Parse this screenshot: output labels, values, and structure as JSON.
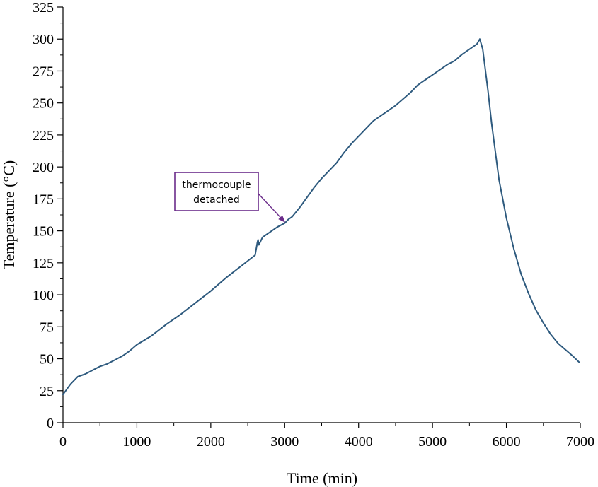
{
  "chart_data": {
    "type": "line",
    "xlabel": "Time (min)",
    "ylabel": "Temperature (°C)",
    "xlim": [
      0,
      7000
    ],
    "ylim": [
      0,
      325
    ],
    "x_ticks": [
      0,
      1000,
      2000,
      3000,
      4000,
      5000,
      6000,
      7000
    ],
    "y_ticks": [
      0,
      25,
      50,
      75,
      100,
      125,
      150,
      175,
      200,
      225,
      250,
      275,
      300,
      325
    ],
    "grid": false,
    "series": [
      {
        "color": "#2e5a7e",
        "x": [
          0,
          100,
          200,
          300,
          400,
          500,
          600,
          700,
          800,
          900,
          1000,
          1200,
          1400,
          1600,
          1800,
          2000,
          2200,
          2400,
          2600,
          2630,
          2640,
          2650,
          2700,
          2800,
          2900,
          3000,
          3050,
          3100,
          3200,
          3300,
          3400,
          3500,
          3600,
          3700,
          3800,
          3900,
          4000,
          4100,
          4200,
          4300,
          4400,
          4500,
          4600,
          4700,
          4800,
          4900,
          5000,
          5100,
          5200,
          5300,
          5400,
          5500,
          5600,
          5640,
          5680,
          5750,
          5800,
          5900,
          6000,
          6100,
          6200,
          6300,
          6400,
          6500,
          6600,
          6700,
          6800,
          6900,
          6990
        ],
        "y": [
          22,
          30,
          36,
          38,
          41,
          44,
          46,
          49,
          52,
          56,
          61,
          68,
          77,
          85,
          94,
          103,
          113,
          122,
          131,
          141,
          143,
          139,
          145,
          149,
          153,
          156,
          159,
          161,
          168,
          176,
          184,
          191,
          197,
          203,
          211,
          218,
          224,
          230,
          236,
          240,
          244,
          248,
          253,
          258,
          264,
          268,
          272,
          276,
          280,
          283,
          288,
          292,
          296,
          300,
          292,
          260,
          234,
          190,
          160,
          136,
          116,
          101,
          88,
          78,
          69,
          62,
          57,
          52,
          47
        ]
      }
    ],
    "annotations": [
      {
        "text_lines": [
          "thermocouple",
          "detached"
        ],
        "x": 3000,
        "y": 157,
        "color": "#6b2c8a"
      }
    ]
  }
}
